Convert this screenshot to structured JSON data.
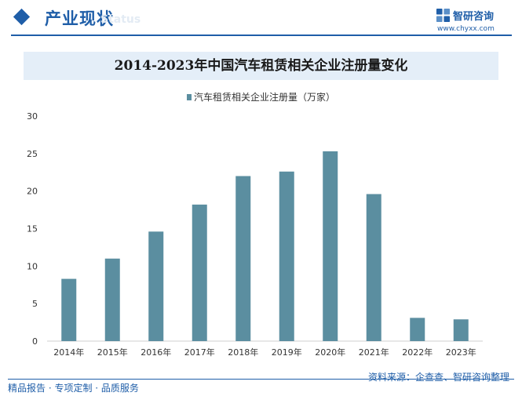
{
  "header": {
    "section_title": "产业现状",
    "section_sub": "Status",
    "brand_name": "智研咨询",
    "brand_url": "www.chyxx.com"
  },
  "colors": {
    "accent": "#1f5ea8",
    "bar": "#5b8ea0",
    "title_band": "#e4eef8"
  },
  "footer": {
    "left": "精品报告 · 专项定制 · 品质服务",
    "right": "资料来源：企查查、智研咨询整理"
  },
  "chart_data": {
    "type": "bar",
    "title": "2014-2023年中国汽车租赁相关企业注册量变化",
    "categories": [
      "2014年",
      "2015年",
      "2016年",
      "2017年",
      "2018年",
      "2019年",
      "2020年",
      "2021年",
      "2022年",
      "2023年"
    ],
    "series": [
      {
        "name": "汽车租赁相关企业注册量（万家）",
        "values": [
          8.3,
          11.0,
          14.6,
          18.2,
          22.0,
          22.6,
          25.3,
          19.6,
          3.1,
          2.9
        ]
      }
    ],
    "yticks": [
      "0",
      "5",
      "10",
      "15",
      "20",
      "25",
      "30"
    ],
    "ylim": [
      0,
      30
    ],
    "grid": false,
    "legend_position": "top"
  }
}
